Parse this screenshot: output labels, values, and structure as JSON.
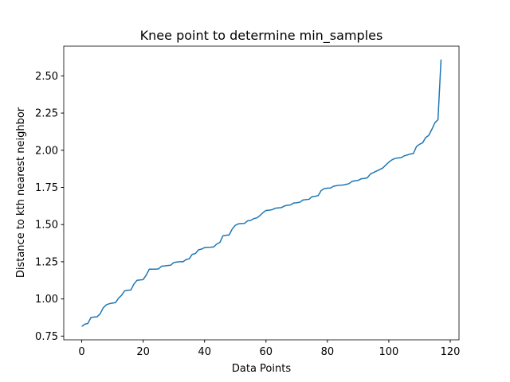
{
  "chart_data": {
    "type": "line",
    "title": "Knee point to determine min_samples",
    "x_label": "Data Points",
    "y_label": "Distance to kth nearest neighbor",
    "x": [
      0,
      1,
      2,
      3,
      4,
      5,
      6,
      7,
      8,
      9,
      10,
      11,
      12,
      13,
      14,
      15,
      16,
      17,
      18,
      19,
      20,
      21,
      22,
      23,
      24,
      25,
      26,
      27,
      28,
      29,
      30,
      31,
      32,
      33,
      34,
      35,
      36,
      37,
      38,
      39,
      40,
      41,
      42,
      43,
      44,
      45,
      46,
      47,
      48,
      49,
      50,
      51,
      52,
      53,
      54,
      55,
      56,
      57,
      58,
      59,
      60,
      61,
      62,
      63,
      64,
      65,
      66,
      67,
      68,
      69,
      70,
      71,
      72,
      73,
      74,
      75,
      76,
      77,
      78,
      79,
      80,
      81,
      82,
      83,
      84,
      85,
      86,
      87,
      88,
      89,
      90,
      91,
      92,
      93,
      94,
      95,
      96,
      97,
      98,
      99,
      100,
      101,
      102,
      103,
      104,
      105,
      106,
      107,
      108,
      109,
      110,
      111,
      112,
      113,
      114,
      115,
      116,
      117
    ],
    "series": [
      {
        "color": "#1f77b4",
        "values": [
          0.815,
          0.83,
          0.835,
          0.875,
          0.878,
          0.88,
          0.9,
          0.94,
          0.96,
          0.968,
          0.972,
          0.975,
          1.005,
          1.025,
          1.055,
          1.058,
          1.06,
          1.1,
          1.125,
          1.128,
          1.13,
          1.16,
          1.2,
          1.2,
          1.2,
          1.202,
          1.22,
          1.222,
          1.225,
          1.227,
          1.245,
          1.248,
          1.25,
          1.25,
          1.265,
          1.27,
          1.3,
          1.305,
          1.33,
          1.335,
          1.345,
          1.347,
          1.348,
          1.35,
          1.37,
          1.38,
          1.425,
          1.428,
          1.43,
          1.47,
          1.495,
          1.505,
          1.507,
          1.508,
          1.525,
          1.528,
          1.54,
          1.545,
          1.56,
          1.58,
          1.595,
          1.597,
          1.6,
          1.61,
          1.612,
          1.614,
          1.625,
          1.63,
          1.632,
          1.645,
          1.647,
          1.65,
          1.665,
          1.668,
          1.67,
          1.688,
          1.69,
          1.695,
          1.73,
          1.742,
          1.745,
          1.746,
          1.758,
          1.762,
          1.765,
          1.766,
          1.77,
          1.775,
          1.79,
          1.795,
          1.797,
          1.808,
          1.81,
          1.815,
          1.84,
          1.85,
          1.86,
          1.87,
          1.88,
          1.9,
          1.92,
          1.935,
          1.945,
          1.948,
          1.95,
          1.962,
          1.968,
          1.975,
          1.978,
          2.025,
          2.04,
          2.05,
          2.085,
          2.1,
          2.14,
          2.185,
          2.205,
          2.61
        ]
      }
    ],
    "xlim": [
      -5.85,
      122.85
    ],
    "ylim": [
      0.725,
      2.7
    ],
    "xticks": [
      0,
      20,
      40,
      60,
      80,
      100,
      120
    ],
    "yticks": [
      0.75,
      {
        "value": 1,
        "label": "1.00"
      },
      1.25,
      {
        "value": 1.5,
        "label": "1.50"
      },
      1.75,
      {
        "value": 2,
        "label": "2.00"
      },
      2.25,
      {
        "value": 2.5,
        "label": "2.50"
      }
    ]
  }
}
